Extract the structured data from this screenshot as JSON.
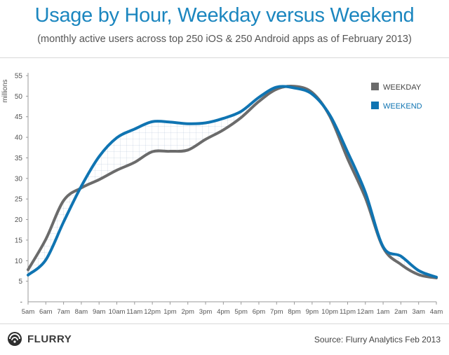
{
  "header": {
    "title": "Usage by Hour, Weekday versus Weekend",
    "subtitle": "(monthly active users across top 250 iOS & 250 Android apps as of February 2013)"
  },
  "footer": {
    "logo_text": "FLURRY",
    "source": "Source: Flurry Analytics Feb 2013"
  },
  "colors": {
    "title": "#1b86bf",
    "weekday": "#6b6b6b",
    "weekend": "#0f74b2",
    "fill_pattern": "#a9bbd3"
  },
  "chart_data": {
    "type": "line",
    "title": "Usage by Hour, Weekday versus Weekend",
    "ylabel": "millions",
    "xlabel": "",
    "ylim": [
      0,
      55
    ],
    "yticks": [
      5,
      10,
      15,
      20,
      25,
      30,
      35,
      40,
      45,
      50,
      55
    ],
    "grid": false,
    "legend_position": "top-right",
    "categories": [
      "5am",
      "6am",
      "7am",
      "8am",
      "9am",
      "10am",
      "11am",
      "12pm",
      "1pm",
      "2pm",
      "3pm",
      "4pm",
      "5pm",
      "6pm",
      "7pm",
      "8pm",
      "9pm",
      "10pm",
      "11pm",
      "12am",
      "1am",
      "2am",
      "3am",
      "4am"
    ],
    "series": [
      {
        "name": "WEEKDAY",
        "color": "#6b6b6b",
        "values": [
          7.8,
          15.2,
          24.6,
          27.7,
          29.7,
          32.0,
          33.9,
          36.5,
          36.6,
          36.9,
          39.5,
          41.8,
          44.8,
          48.7,
          51.7,
          52.4,
          50.9,
          45.1,
          34.8,
          25.3,
          13.2,
          9.1,
          6.6,
          5.8
        ]
      },
      {
        "name": "WEEKEND",
        "color": "#0f74b2",
        "values": [
          6.5,
          10.2,
          19.4,
          28.1,
          35.3,
          39.9,
          42.0,
          43.8,
          43.7,
          43.3,
          43.5,
          44.6,
          46.3,
          49.7,
          52.2,
          52.0,
          50.5,
          45.4,
          36.4,
          26.6,
          13.4,
          11.1,
          7.6,
          6.0
        ]
      }
    ]
  }
}
